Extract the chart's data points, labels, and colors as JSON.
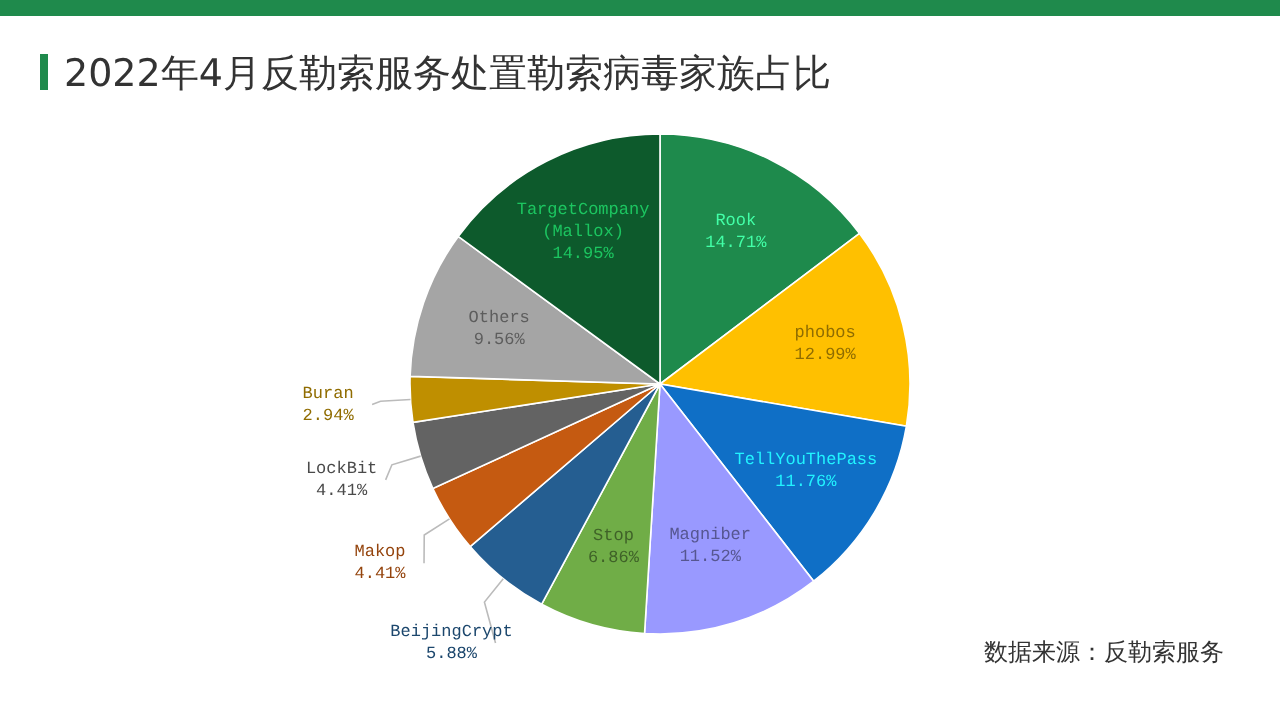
{
  "chart_data": {
    "type": "pie",
    "title": "2022年4月反勒索服务处置勒索病毒家族占比",
    "categories": [
      "Rook",
      "phobos",
      "TellYouThePass",
      "Magniber",
      "Stop",
      "BeijingCrypt",
      "Makop",
      "LockBit",
      "Buran",
      "Others",
      "TargetCompany\n(Mallox)"
    ],
    "values": [
      14.71,
      12.99,
      11.76,
      11.52,
      6.86,
      5.88,
      4.41,
      4.41,
      2.94,
      9.56,
      14.95
    ],
    "value_labels": [
      "14.71%",
      "12.99%",
      "11.76%",
      "11.52%",
      "6.86%",
      "5.88%",
      "4.41%",
      "4.41%",
      "2.94%",
      "9.56%",
      "14.95%"
    ],
    "colors": [
      "#1e8a4c",
      "#ffc000",
      "#0f6fc6",
      "#9999ff",
      "#70ad47",
      "#255e91",
      "#c55a11",
      "#636363",
      "#bf8f00",
      "#a5a5a5",
      "#0d5a2c"
    ],
    "annotations": [
      "数据来源：反勒索服务"
    ]
  }
}
